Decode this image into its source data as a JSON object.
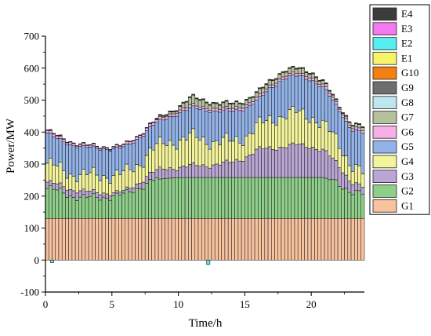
{
  "chart_data": {
    "type": "bar",
    "stacked": true,
    "title": "",
    "xlabel": "Time/h",
    "ylabel": "Power/MW",
    "xlim": [
      0,
      24
    ],
    "ylim": [
      -100,
      700
    ],
    "x_ticks": [
      0,
      5,
      10,
      15,
      20
    ],
    "y_ticks": [
      -100,
      0,
      100,
      200,
      300,
      400,
      500,
      600,
      700
    ],
    "interval_h": 0.25,
    "grid": false,
    "legend_position": "right",
    "legend_order": [
      "E4",
      "E3",
      "E2",
      "E1",
      "G10",
      "G9",
      "G8",
      "G7",
      "G6",
      "G5",
      "G4",
      "G3",
      "G2",
      "G1"
    ],
    "colors": {
      "G1": "#f7c29e",
      "G2": "#8fcf8a",
      "G3": "#b9a6d3",
      "G4": "#f4f49c",
      "G5": "#93b3e8",
      "G6": "#f7b0e6",
      "G7": "#b5c19c",
      "G8": "#bfe6ee",
      "G9": "#6e6e6e",
      "G10": "#f57f10",
      "E1": "#f7f36a",
      "E2": "#56eef0",
      "E3": "#f279f2",
      "E4": "#3c3c3c"
    },
    "profiles": {
      "total_hourly": [
        410,
        385,
        370,
        360,
        355,
        355,
        360,
        390,
        430,
        455,
        480,
        510,
        500,
        490,
        490,
        500,
        525,
        565,
        595,
        600,
        590,
        555,
        490,
        430,
        415
      ],
      "G1_constant": 130,
      "G2_top_hourly": [
        225,
        215,
        200,
        195,
        195,
        200,
        205,
        225,
        250,
        255,
        258,
        258,
        258,
        258,
        258,
        258,
        258,
        258,
        258,
        258,
        258,
        258,
        240,
        215,
        205
      ],
      "G3_top_hourly": [
        245,
        235,
        220,
        215,
        210,
        210,
        215,
        240,
        275,
        285,
        290,
        295,
        295,
        300,
        305,
        320,
        345,
        350,
        355,
        360,
        355,
        340,
        300,
        245,
        225
      ],
      "G4_top_hourly": [
        305,
        285,
        270,
        265,
        265,
        265,
        270,
        300,
        345,
        365,
        375,
        385,
        375,
        370,
        370,
        385,
        420,
        440,
        455,
        460,
        450,
        420,
        370,
        300,
        265
      ],
      "G5_top_hourly": [
        400,
        375,
        360,
        352,
        348,
        348,
        352,
        380,
        420,
        440,
        460,
        475,
        470,
        465,
        465,
        475,
        500,
        540,
        570,
        575,
        565,
        535,
        475,
        410,
        395
      ],
      "negatives": [
        {
          "time": 0.5,
          "value": -8
        },
        {
          "time": 12.25,
          "value": -14
        }
      ]
    }
  }
}
